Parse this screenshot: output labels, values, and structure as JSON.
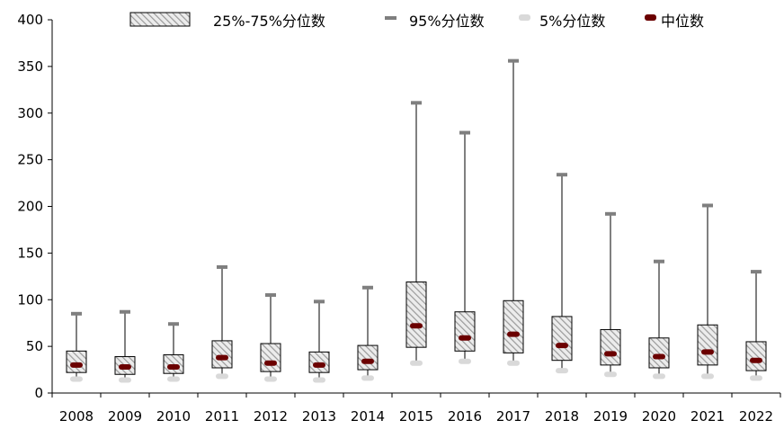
{
  "chart_data": {
    "type": "box",
    "categories": [
      "2008",
      "2009",
      "2010",
      "2011",
      "2012",
      "2013",
      "2014",
      "2015",
      "2016",
      "2017",
      "2018",
      "2019",
      "2020",
      "2021",
      "2022"
    ],
    "series": [
      {
        "name": "25%-75%分位数",
        "q1": [
          22,
          20,
          21,
          27,
          23,
          22,
          25,
          49,
          45,
          43,
          35,
          30,
          27,
          30,
          24
        ],
        "q3": [
          45,
          39,
          41,
          56,
          53,
          44,
          51,
          119,
          87,
          99,
          82,
          68,
          59,
          73,
          55
        ]
      },
      {
        "name": "95%分位数",
        "values": [
          85,
          87,
          74,
          135,
          105,
          98,
          113,
          311,
          279,
          356,
          234,
          192,
          141,
          201,
          130
        ]
      },
      {
        "name": "5%分位数",
        "values": [
          15,
          14,
          15,
          18,
          15,
          14,
          16,
          32,
          34,
          32,
          24,
          20,
          18,
          18,
          16
        ]
      },
      {
        "name": "中位数",
        "values": [
          30,
          28,
          28,
          38,
          32,
          30,
          34,
          72,
          59,
          63,
          51,
          42,
          39,
          44,
          35
        ]
      }
    ],
    "ylim": [
      0,
      400
    ],
    "yticks": [
      0,
      50,
      100,
      150,
      200,
      250,
      300,
      350,
      400
    ],
    "legend_position": "top",
    "colors": {
      "box_fill": "#d9d9d9",
      "box_hatch": "#a6a6a6",
      "box_edge": "#000000",
      "p95": "#7f7f7f",
      "p5": "#d9d9d9",
      "median": "#6b0000"
    }
  }
}
